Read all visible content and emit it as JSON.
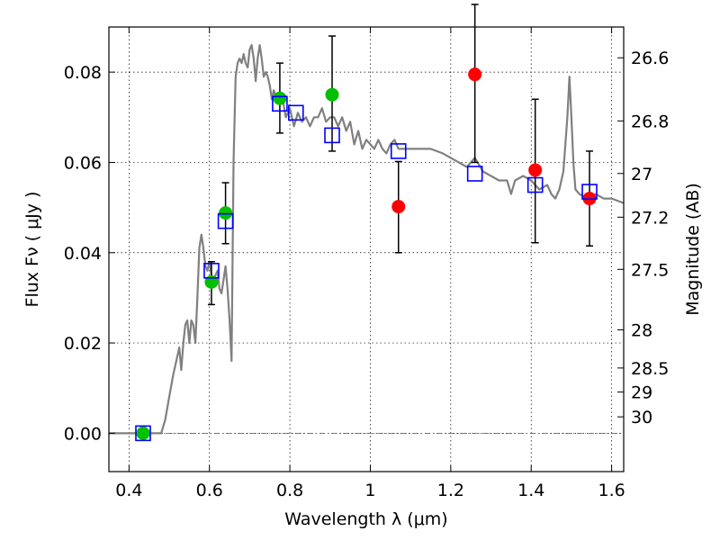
{
  "chart_data": {
    "type": "scatter",
    "xlabel": "Wavelength  λ (μm)",
    "ylabel_left": "Flux  Fν  ( μJy )",
    "ylabel_right": "Magnitude (AB)",
    "xlim": [
      0.35,
      1.63
    ],
    "ylim": [
      -0.0085,
      0.09
    ],
    "x_ticks": [
      0.4,
      0.6,
      0.8,
      1.0,
      1.2,
      1.4,
      1.6
    ],
    "x_tick_labels": [
      "0.4",
      "0.6",
      "0.8",
      "1",
      "1.2",
      "1.4",
      "1.6"
    ],
    "y_ticks": [
      0.0,
      0.02,
      0.04,
      0.06,
      0.08
    ],
    "y_tick_labels": [
      "0.00",
      "0.02",
      "0.04",
      "0.06",
      "0.08"
    ],
    "right_ticks": [
      26.6,
      26.8,
      27.0,
      27.2,
      27.5,
      28.0,
      28.5,
      29.0,
      30.0
    ],
    "right_tick_labels": [
      "26.6",
      "26.8",
      "27",
      "27.2",
      "27.5",
      "28",
      "28.5",
      "29",
      "30"
    ],
    "grid": true,
    "colors": {
      "model": "#808080",
      "model_fluxes": "#0000ff",
      "green_points": "#00c000",
      "red_points": "#ff0000",
      "errorbars": "#000000",
      "zero_line": "#555555"
    },
    "series": [
      {
        "kind": "model_spectrum",
        "x": [
          0.35,
          0.48,
          0.49,
          0.5,
          0.51,
          0.52,
          0.525,
          0.53,
          0.535,
          0.54,
          0.545,
          0.55,
          0.555,
          0.56,
          0.565,
          0.57,
          0.575,
          0.58,
          0.585,
          0.59,
          0.595,
          0.6,
          0.605,
          0.61,
          0.615,
          0.62,
          0.625,
          0.63,
          0.635,
          0.64,
          0.645,
          0.65,
          0.655,
          0.66,
          0.665,
          0.67,
          0.675,
          0.68,
          0.685,
          0.69,
          0.695,
          0.7,
          0.705,
          0.71,
          0.715,
          0.72,
          0.725,
          0.73,
          0.735,
          0.74,
          0.745,
          0.75,
          0.755,
          0.76,
          0.77,
          0.78,
          0.79,
          0.8,
          0.81,
          0.82,
          0.83,
          0.84,
          0.85,
          0.86,
          0.87,
          0.88,
          0.89,
          0.9,
          0.91,
          0.92,
          0.93,
          0.94,
          0.95,
          0.96,
          0.97,
          0.98,
          0.99,
          1.0,
          1.01,
          1.02,
          1.03,
          1.04,
          1.05,
          1.06,
          1.07,
          1.08,
          1.1,
          1.12,
          1.15,
          1.18,
          1.2,
          1.22,
          1.24,
          1.26,
          1.28,
          1.3,
          1.32,
          1.34,
          1.35,
          1.36,
          1.38,
          1.4,
          1.42,
          1.44,
          1.45,
          1.46,
          1.47,
          1.48,
          1.49,
          1.495,
          1.5,
          1.505,
          1.51,
          1.52,
          1.54,
          1.56,
          1.58,
          1.6,
          1.63
        ],
        "y": [
          0.0,
          0.0,
          0.003,
          0.008,
          0.013,
          0.017,
          0.019,
          0.014,
          0.02,
          0.024,
          0.025,
          0.02,
          0.025,
          0.024,
          0.02,
          0.03,
          0.041,
          0.044,
          0.041,
          0.037,
          0.036,
          0.038,
          0.035,
          0.033,
          0.035,
          0.036,
          0.032,
          0.031,
          0.034,
          0.037,
          0.032,
          0.025,
          0.016,
          0.06,
          0.079,
          0.082,
          0.083,
          0.082,
          0.084,
          0.082,
          0.081,
          0.085,
          0.086,
          0.083,
          0.078,
          0.083,
          0.086,
          0.083,
          0.079,
          0.08,
          0.079,
          0.077,
          0.074,
          0.076,
          0.073,
          0.075,
          0.07,
          0.072,
          0.068,
          0.071,
          0.069,
          0.07,
          0.068,
          0.07,
          0.07,
          0.072,
          0.069,
          0.07,
          0.07,
          0.068,
          0.07,
          0.067,
          0.069,
          0.064,
          0.067,
          0.063,
          0.065,
          0.064,
          0.063,
          0.065,
          0.063,
          0.062,
          0.064,
          0.065,
          0.063,
          0.063,
          0.063,
          0.063,
          0.063,
          0.062,
          0.061,
          0.06,
          0.059,
          0.061,
          0.058,
          0.057,
          0.056,
          0.056,
          0.053,
          0.056,
          0.057,
          0.056,
          0.054,
          0.055,
          0.053,
          0.052,
          0.054,
          0.058,
          0.07,
          0.079,
          0.07,
          0.06,
          0.054,
          0.053,
          0.052,
          0.053,
          0.052,
          0.052,
          0.051
        ]
      },
      {
        "kind": "model_fluxes",
        "x": [
          0.435,
          0.605,
          0.64,
          0.775,
          0.815,
          0.905,
          1.07,
          1.26,
          1.41,
          1.545
        ],
        "y": [
          0.0,
          0.036,
          0.047,
          0.073,
          0.071,
          0.066,
          0.0625,
          0.0575,
          0.055,
          0.0535
        ]
      },
      {
        "kind": "green_measurements",
        "x": [
          0.435,
          0.605,
          0.64,
          0.775,
          0.905
        ],
        "y": [
          0.0,
          0.0335,
          0.0488,
          0.0742,
          0.075
        ],
        "yerr_low": [
          null,
          0.0285,
          0.042,
          0.0665,
          0.0625
        ],
        "yerr_high": [
          null,
          0.038,
          0.0555,
          0.082,
          0.088
        ]
      },
      {
        "kind": "red_measurements",
        "x": [
          1.07,
          1.26,
          1.41,
          1.545
        ],
        "y": [
          0.0502,
          0.0795,
          0.0583,
          0.052
        ],
        "yerr_low": [
          0.04,
          0.06,
          0.0422,
          0.0415
        ],
        "yerr_high": [
          0.0602,
          0.095,
          0.074,
          0.0625
        ]
      }
    ]
  }
}
